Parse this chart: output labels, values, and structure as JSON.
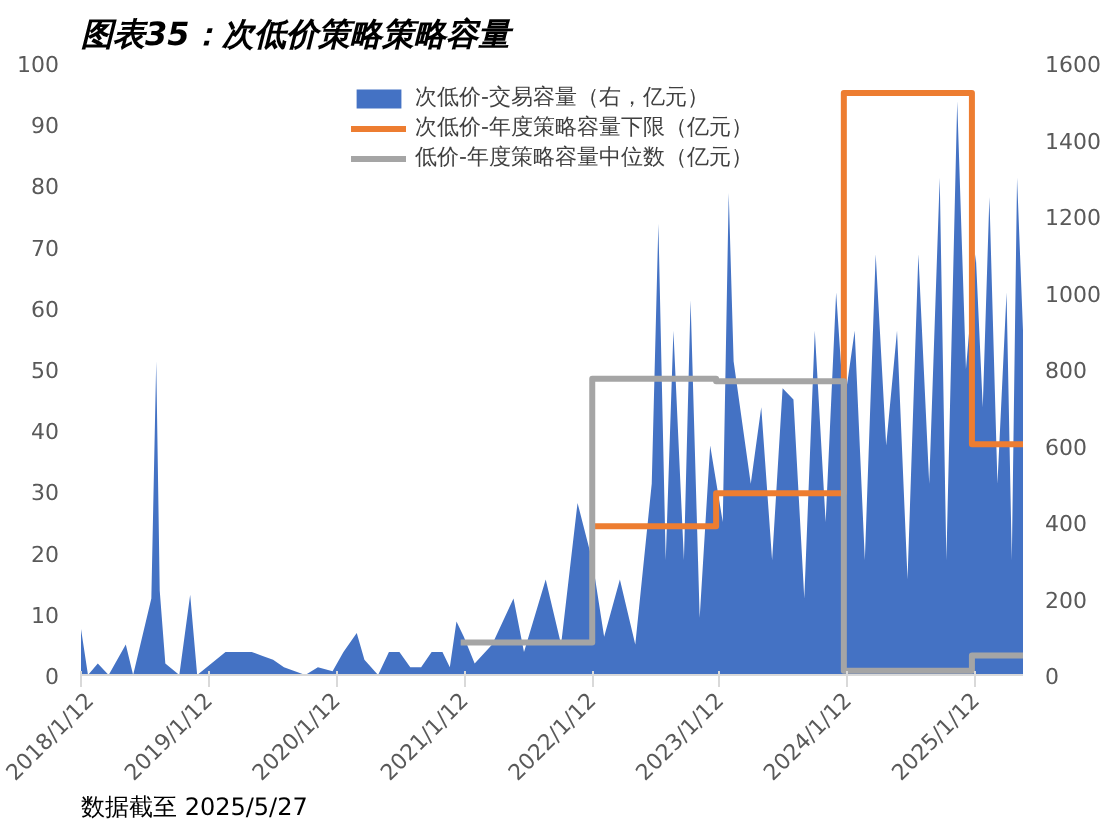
{
  "chart_data": {
    "type": "area",
    "title": "图表35：次低价策略策略容量",
    "annotations": [
      "数据截至 2025/5/27"
    ],
    "x": [
      "2018-01-12",
      "2018-02-01",
      "2018-03-01",
      "2018-04-01",
      "2018-05-20",
      "2018-06-10",
      "2018-08-01",
      "2018-08-15",
      "2018-08-25",
      "2018-09-10",
      "2018-10-20",
      "2018-11-20",
      "2018-12-10",
      "2019-03-01",
      "2019-04-20",
      "2019-05-15",
      "2019-06-15",
      "2019-07-15",
      "2019-08-15",
      "2019-10-15",
      "2019-11-20",
      "2020-01-01",
      "2020-02-01",
      "2020-03-10",
      "2020-04-01",
      "2020-05-10",
      "2020-06-10",
      "2020-07-10",
      "2020-08-10",
      "2020-09-10",
      "2020-10-10",
      "2020-11-10",
      "2020-12-01",
      "2020-12-20",
      "2021-01-10",
      "2021-02-10",
      "2021-04-01",
      "2021-06-01",
      "2021-07-01",
      "2021-09-01",
      "2021-10-15",
      "2021-12-01",
      "2022-01-12",
      "2022-02-15",
      "2022-04-01",
      "2022-05-15",
      "2022-07-01",
      "2022-07-20",
      "2022-08-10",
      "2022-09-01",
      "2022-10-01",
      "2022-10-20",
      "2022-11-15",
      "2022-12-15",
      "2023-01-20",
      "2023-02-06",
      "2023-02-20",
      "2023-04-10",
      "2023-05-10",
      "2023-06-10",
      "2023-07-10",
      "2023-08-10",
      "2023-09-10",
      "2023-10-10",
      "2023-11-10",
      "2023-12-10",
      "2024-01-01",
      "2024-02-01",
      "2024-03-01",
      "2024-04-01",
      "2024-05-01",
      "2024-06-01",
      "2024-07-01",
      "2024-08-01",
      "2024-09-01",
      "2024-10-01",
      "2024-10-20",
      "2024-11-20",
      "2024-12-15",
      "2025-01-12",
      "2025-02-01",
      "2025-02-20",
      "2025-03-15",
      "2025-04-10",
      "2025-04-25",
      "2025-05-10",
      "2025-05-27"
    ],
    "series": [
      {
        "name": "次低价-交易容量（右，亿元）",
        "axis": "y2",
        "color": "#4472c4",
        "values": [
          120,
          0,
          30,
          0,
          80,
          0,
          200,
          820,
          220,
          30,
          0,
          210,
          0,
          60,
          60,
          60,
          50,
          40,
          20,
          0,
          20,
          10,
          60,
          110,
          40,
          0,
          60,
          60,
          20,
          20,
          60,
          60,
          20,
          140,
          100,
          30,
          80,
          200,
          60,
          250,
          80,
          450,
          300,
          100,
          250,
          80,
          500,
          1180,
          300,
          900,
          300,
          980,
          150,
          600,
          400,
          1260,
          820,
          500,
          700,
          300,
          750,
          720,
          200,
          900,
          400,
          1000,
          700,
          900,
          300,
          1100,
          600,
          900,
          250,
          1100,
          500,
          1300,
          300,
          1500,
          800,
          1100,
          700,
          1250,
          500,
          1000,
          300,
          1300,
          900
        ]
      },
      {
        "name": "次低价-年度策略容量下限（亿元）",
        "type": "step",
        "color": "#ed7d31",
        "x": [
          "2022-01-12",
          "2023-01-01",
          "2024-01-01",
          "2025-01-01",
          "2025-05-27"
        ],
        "values": [
          24.3,
          29.7,
          95.1,
          37.7,
          37.7
        ]
      },
      {
        "name": "低价-年度策略容量中位数（亿元）",
        "type": "step",
        "color": "#a5a5a5",
        "x": [
          "2021-01-01",
          "2022-01-12",
          "2023-01-01",
          "2024-01-01",
          "2025-01-01",
          "2025-05-27"
        ],
        "values": [
          5.3,
          48.4,
          48.0,
          0.7,
          3.2,
          3.2
        ]
      }
    ],
    "xlim": [
      "2018-01-12",
      "2025-05-27"
    ],
    "xticks": [
      {
        "value": "2018-01-12",
        "label": "2018/1/12"
      },
      {
        "value": "2019-01-12",
        "label": "2019/1/12"
      },
      {
        "value": "2020-01-12",
        "label": "2020/1/12"
      },
      {
        "value": "2021-01-12",
        "label": "2021/1/12"
      },
      {
        "value": "2022-01-12",
        "label": "2022/1/12"
      },
      {
        "value": "2023-01-12",
        "label": "2023/1/12"
      },
      {
        "value": "2024-01-12",
        "label": "2024/1/12"
      },
      {
        "value": "2025-01-12",
        "label": "2025/1/12"
      }
    ],
    "ylim": [
      0,
      100
    ],
    "yticks": [
      0,
      10,
      20,
      30,
      40,
      50,
      60,
      70,
      80,
      90,
      100
    ],
    "y2lim": [
      0,
      1600
    ],
    "y2ticks": [
      0,
      200,
      400,
      600,
      800,
      1000,
      1200,
      1400,
      1600
    ],
    "legend": "top",
    "grid": false
  }
}
